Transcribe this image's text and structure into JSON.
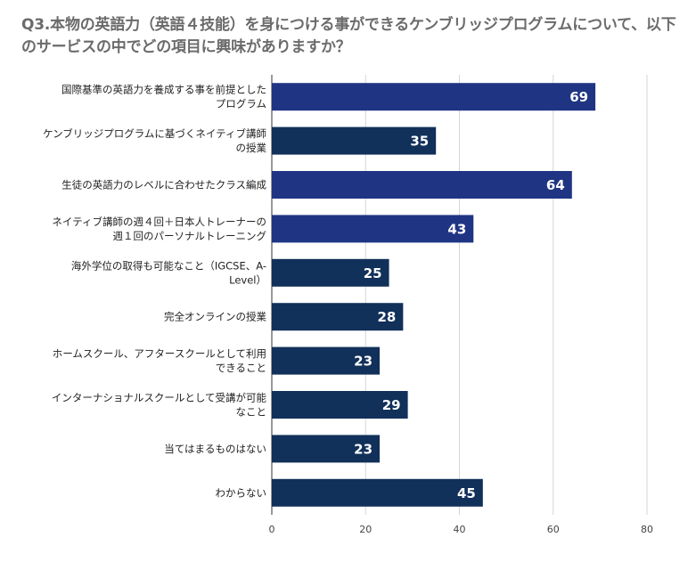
{
  "title": "Q3.本物の英語力（英語４技能）を身につける事ができるケンブリッジプログラムについて、以下のサービスの中でどの項目に興味がありますか？",
  "chart_data": {
    "type": "bar",
    "orientation": "horizontal",
    "title": "Q3.本物の英語力（英語４技能）を身につける事ができるケンブリッジプログラムについて、以下のサービスの中でどの項目に興味がありますか？",
    "xlabel": "",
    "ylabel": "",
    "xlim": [
      0,
      80
    ],
    "x_ticks": [
      "0",
      "20",
      "40",
      "60",
      "80"
    ],
    "grid": true,
    "legend": "none",
    "categories": [
      [
        "国際基準の英語力を養成する事を前提とした",
        "プログラム"
      ],
      [
        "ケンブリッジプログラムに基づくネイティブ講師",
        "の授業"
      ],
      [
        "生徒の英語力のレベルに合わせたクラス編成"
      ],
      [
        "ネイティブ講師の週４回＋日本人トレーナーの",
        "週１回のパーソナルトレーニング"
      ],
      [
        "海外学位の取得も可能なこと（IGCSE、A-",
        "Level）"
      ],
      [
        "完全オンラインの授業"
      ],
      [
        "ホームスクール、アフタースクールとして利用",
        "できること"
      ],
      [
        "インターナショナルスクールとして受講が可能",
        "なこと"
      ],
      [
        "当てはまるものはない"
      ],
      [
        "わからない"
      ]
    ],
    "values": [
      69,
      35,
      64,
      43,
      25,
      28,
      23,
      29,
      23,
      45
    ],
    "value_labels": [
      "69",
      "35",
      "64",
      "43",
      "25",
      "28",
      "23",
      "29",
      "23",
      "45"
    ],
    "bar_colors": [
      "#1f3583",
      "#11305a",
      "#1f3583",
      "#1f3583",
      "#11305a",
      "#11305a",
      "#11305a",
      "#11305a",
      "#11305a",
      "#11305a"
    ]
  }
}
